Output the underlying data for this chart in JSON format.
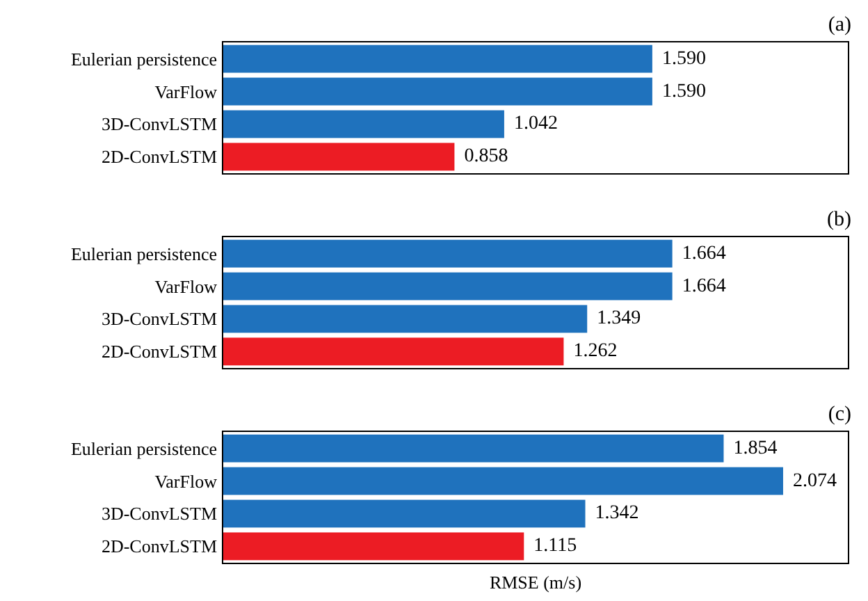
{
  "chart_data": [
    {
      "type": "bar",
      "orientation": "horizontal",
      "title": "(a)",
      "categories": [
        "Eulerian persistence",
        "VarFlow",
        "3D-ConvLSTM",
        "2D-ConvLSTM"
      ],
      "values": [
        1.59,
        1.59,
        1.042,
        0.858
      ],
      "value_labels": [
        "1.590",
        "1.590",
        "1.042",
        "0.858"
      ],
      "colors": [
        "#1f72bd",
        "#1f72bd",
        "#1f72bd",
        "#ec1c24"
      ],
      "xlim": [
        0,
        2.316
      ],
      "tick_labels": "y"
    },
    {
      "type": "bar",
      "orientation": "horizontal",
      "title": "(b)",
      "categories": [
        "Eulerian persistence",
        "VarFlow",
        "3D-ConvLSTM",
        "2D-ConvLSTM"
      ],
      "values": [
        1.664,
        1.664,
        1.349,
        1.262
      ],
      "value_labels": [
        "1.664",
        "1.664",
        "1.349",
        "1.262"
      ],
      "colors": [
        "#1f72bd",
        "#1f72bd",
        "#1f72bd",
        "#ec1c24"
      ],
      "xlim": [
        0,
        2.316
      ],
      "tick_labels": "y"
    },
    {
      "type": "bar",
      "orientation": "horizontal",
      "title": "(c)",
      "xlabel": "RMSE (m/s)",
      "categories": [
        "Eulerian persistence",
        "VarFlow",
        "3D-ConvLSTM",
        "2D-ConvLSTM"
      ],
      "values": [
        1.854,
        2.074,
        1.342,
        1.115
      ],
      "value_labels": [
        "1.854",
        "2.074",
        "1.342",
        "1.115"
      ],
      "colors": [
        "#1f72bd",
        "#1f72bd",
        "#1f72bd",
        "#ec1c24"
      ],
      "xlim": [
        0,
        2.316
      ],
      "tick_labels": "y"
    }
  ]
}
